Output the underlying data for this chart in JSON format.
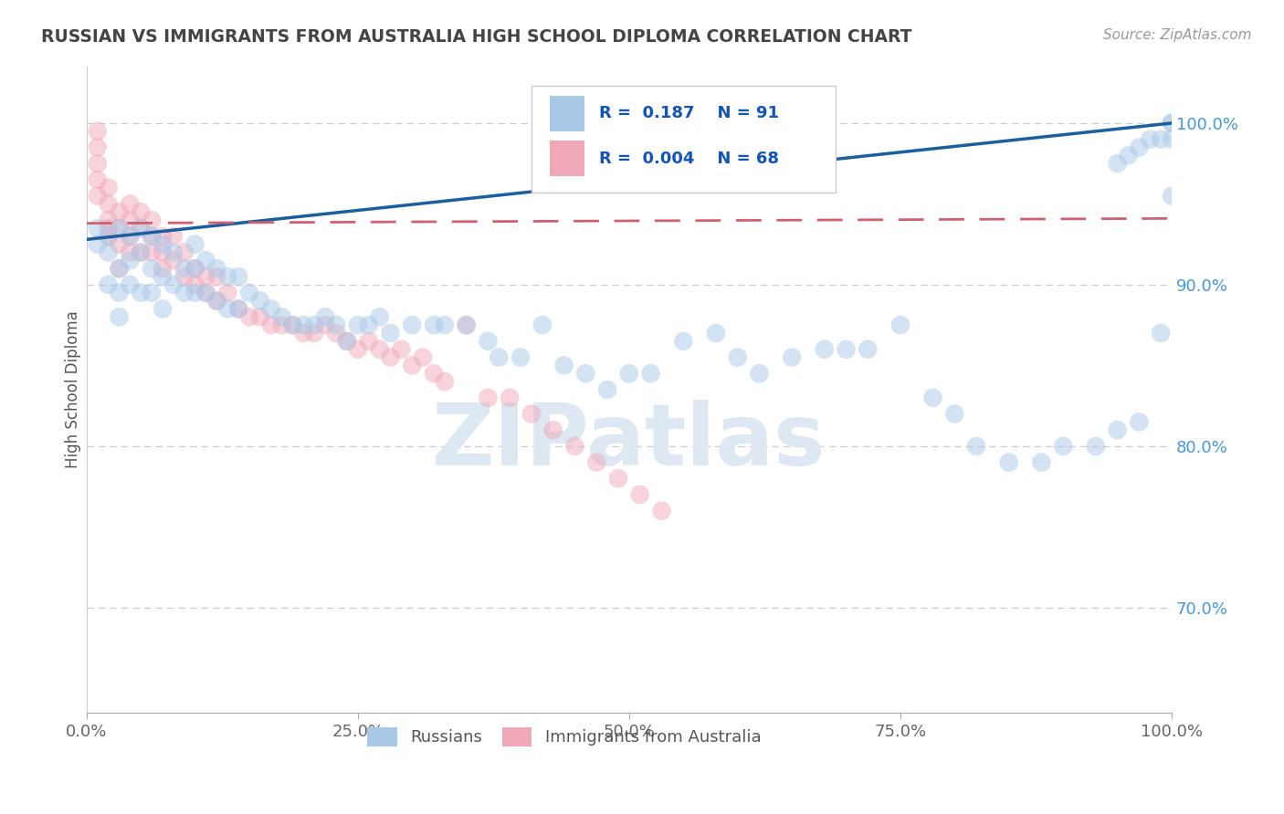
{
  "title": "RUSSIAN VS IMMIGRANTS FROM AUSTRALIA HIGH SCHOOL DIPLOMA CORRELATION CHART",
  "source": "Source: ZipAtlas.com",
  "ylabel": "High School Diploma",
  "legend_blue_r": "0.187",
  "legend_blue_n": "91",
  "legend_pink_r": "0.004",
  "legend_pink_n": "68",
  "legend_label_blue": "Russians",
  "legend_label_pink": "Immigrants from Australia",
  "watermark": "ZIPatlas",
  "y_ticks": [
    0.7,
    0.8,
    0.9,
    1.0
  ],
  "y_tick_labels": [
    "70.0%",
    "80.0%",
    "90.0%",
    "100.0%"
  ],
  "x_lim": [
    0.0,
    1.0
  ],
  "y_lim": [
    0.635,
    1.035
  ],
  "blue_color": "#A8C8E8",
  "pink_color": "#F0A8B8",
  "blue_line_color": "#1A5FA0",
  "pink_line_color": "#D06070",
  "grid_color": "#CCCCCC",
  "title_color": "#444444",
  "tick_color_y": "#4499DD",
  "tick_color_x": "#666666",
  "blue_scatter_x": [
    0.01,
    0.01,
    0.02,
    0.02,
    0.02,
    0.03,
    0.03,
    0.03,
    0.03,
    0.04,
    0.04,
    0.04,
    0.05,
    0.05,
    0.05,
    0.06,
    0.06,
    0.06,
    0.07,
    0.07,
    0.07,
    0.08,
    0.08,
    0.09,
    0.09,
    0.1,
    0.1,
    0.1,
    0.11,
    0.11,
    0.12,
    0.12,
    0.13,
    0.13,
    0.14,
    0.14,
    0.15,
    0.16,
    0.17,
    0.18,
    0.19,
    0.2,
    0.21,
    0.22,
    0.23,
    0.24,
    0.25,
    0.26,
    0.27,
    0.28,
    0.3,
    0.32,
    0.33,
    0.35,
    0.37,
    0.38,
    0.4,
    0.42,
    0.44,
    0.46,
    0.48,
    0.5,
    0.52,
    0.55,
    0.58,
    0.6,
    0.62,
    0.65,
    0.68,
    0.7,
    0.72,
    0.75,
    0.78,
    0.8,
    0.82,
    0.85,
    0.88,
    0.9,
    0.93,
    0.95,
    0.97,
    0.99,
    1.0,
    1.0,
    1.0,
    1.0,
    0.99,
    0.98,
    0.97,
    0.96,
    0.95
  ],
  "blue_scatter_y": [
    0.935,
    0.925,
    0.93,
    0.92,
    0.9,
    0.935,
    0.91,
    0.895,
    0.88,
    0.93,
    0.915,
    0.9,
    0.935,
    0.92,
    0.895,
    0.93,
    0.91,
    0.895,
    0.925,
    0.905,
    0.885,
    0.92,
    0.9,
    0.91,
    0.895,
    0.925,
    0.91,
    0.895,
    0.915,
    0.895,
    0.91,
    0.89,
    0.905,
    0.885,
    0.905,
    0.885,
    0.895,
    0.89,
    0.885,
    0.88,
    0.875,
    0.875,
    0.875,
    0.88,
    0.875,
    0.865,
    0.875,
    0.875,
    0.88,
    0.87,
    0.875,
    0.875,
    0.875,
    0.875,
    0.865,
    0.855,
    0.855,
    0.875,
    0.85,
    0.845,
    0.835,
    0.845,
    0.845,
    0.865,
    0.87,
    0.855,
    0.845,
    0.855,
    0.86,
    0.86,
    0.86,
    0.875,
    0.83,
    0.82,
    0.8,
    0.79,
    0.79,
    0.8,
    0.8,
    0.81,
    0.815,
    0.87,
    0.955,
    0.99,
    1.0,
    1.0,
    0.99,
    0.99,
    0.985,
    0.98,
    0.975
  ],
  "pink_scatter_x": [
    0.01,
    0.01,
    0.01,
    0.01,
    0.01,
    0.02,
    0.02,
    0.02,
    0.02,
    0.02,
    0.03,
    0.03,
    0.03,
    0.03,
    0.04,
    0.04,
    0.04,
    0.04,
    0.05,
    0.05,
    0.05,
    0.06,
    0.06,
    0.06,
    0.07,
    0.07,
    0.07,
    0.08,
    0.08,
    0.09,
    0.09,
    0.1,
    0.1,
    0.11,
    0.11,
    0.12,
    0.12,
    0.13,
    0.14,
    0.15,
    0.16,
    0.17,
    0.18,
    0.19,
    0.2,
    0.21,
    0.22,
    0.23,
    0.24,
    0.25,
    0.26,
    0.27,
    0.28,
    0.29,
    0.3,
    0.31,
    0.32,
    0.33,
    0.35,
    0.37,
    0.39,
    0.41,
    0.43,
    0.45,
    0.47,
    0.49,
    0.51,
    0.53
  ],
  "pink_scatter_y": [
    0.995,
    0.985,
    0.975,
    0.965,
    0.955,
    0.96,
    0.95,
    0.94,
    0.935,
    0.93,
    0.945,
    0.935,
    0.925,
    0.91,
    0.95,
    0.94,
    0.93,
    0.92,
    0.945,
    0.935,
    0.92,
    0.94,
    0.93,
    0.92,
    0.93,
    0.92,
    0.91,
    0.93,
    0.915,
    0.92,
    0.905,
    0.91,
    0.9,
    0.905,
    0.895,
    0.905,
    0.89,
    0.895,
    0.885,
    0.88,
    0.88,
    0.875,
    0.875,
    0.875,
    0.87,
    0.87,
    0.875,
    0.87,
    0.865,
    0.86,
    0.865,
    0.86,
    0.855,
    0.86,
    0.85,
    0.855,
    0.845,
    0.84,
    0.875,
    0.83,
    0.83,
    0.82,
    0.81,
    0.8,
    0.79,
    0.78,
    0.77,
    0.76
  ],
  "blue_trend_x0": 0.0,
  "blue_trend_y0": 0.928,
  "blue_trend_x1": 1.0,
  "blue_trend_y1": 1.0,
  "pink_trend_x0": 0.0,
  "pink_trend_y0": 0.938,
  "pink_trend_x1": 1.0,
  "pink_trend_y1": 0.941
}
